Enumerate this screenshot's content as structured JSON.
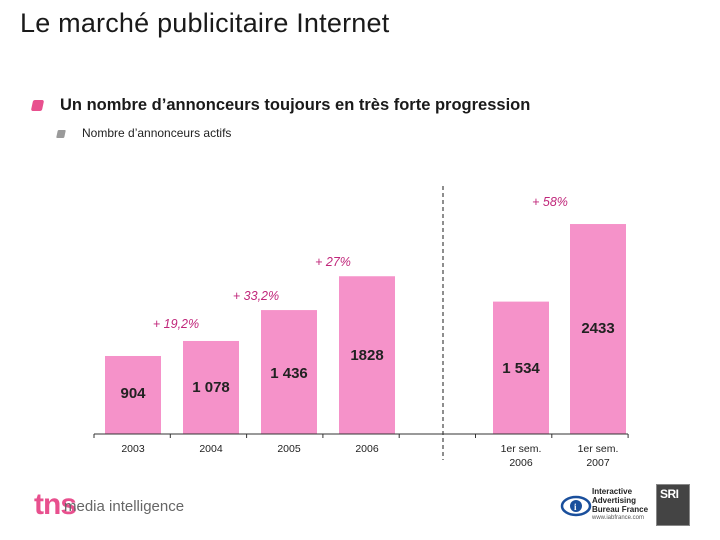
{
  "page": {
    "title": "Le marché publicitaire Internet",
    "subtitle": "Un nombre d’annonceurs toujours en très forte progression",
    "subsubtitle": "Nombre d’annonceurs actifs"
  },
  "chart_data": {
    "type": "bar",
    "bar_color": "#f592c9",
    "categories": [
      "2003",
      "2004",
      "2005",
      "2006",
      "1er sem.\n2006",
      "1er sem.\n2007"
    ],
    "values": [
      904,
      1078,
      1436,
      1828,
      1534,
      2433
    ],
    "value_labels": [
      "904",
      "1 078",
      "1 436",
      "1828",
      "1 534",
      "2433"
    ],
    "growth_labels": [
      "",
      "+ 19,2%",
      "+ 33,2%",
      "+ 27%",
      "",
      "+ 58%"
    ],
    "growth_color": "#c0267a",
    "separator_after_index": 3,
    "ylim": [
      0,
      2600
    ],
    "title": "Nombre d’annonceurs actifs",
    "xlabel": "",
    "ylabel": ""
  },
  "footer": {
    "tns_logo": "tns",
    "tns_tagline": "media intelligence",
    "iab_text": [
      "Interactive",
      "Advertising",
      "Bureau France"
    ],
    "iab_url": "www.iabfrance.com",
    "sri_logo": "SRI"
  }
}
